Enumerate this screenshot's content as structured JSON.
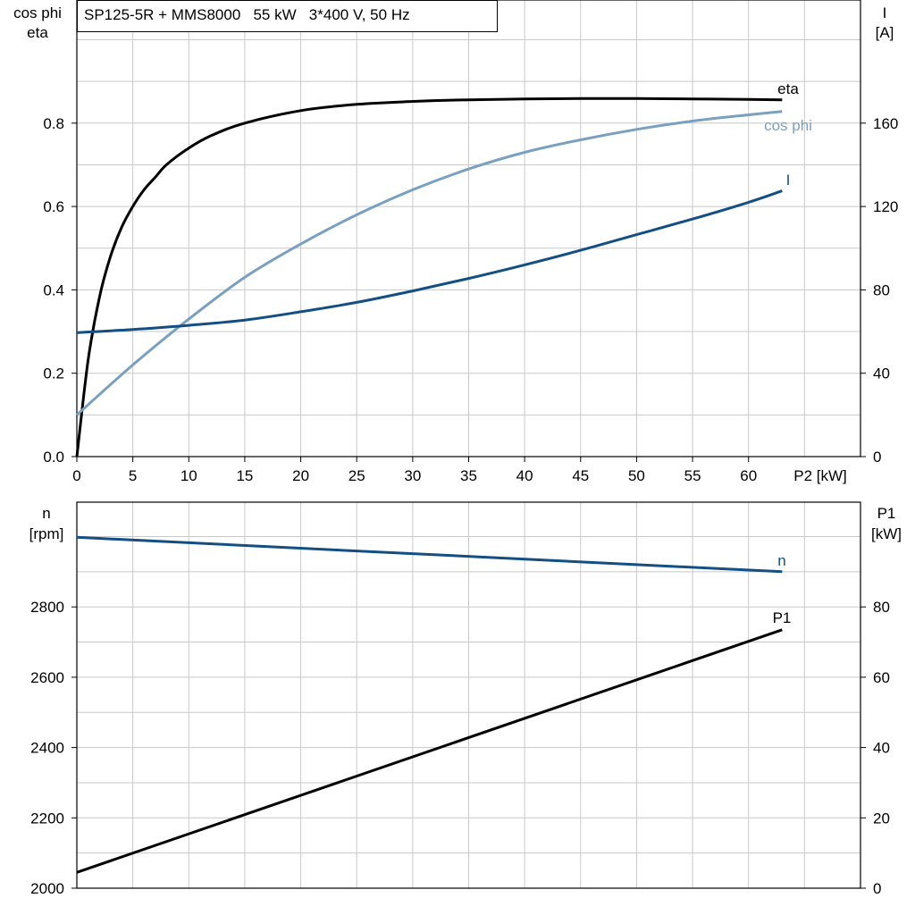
{
  "title": "SP125-5R + MMS8000   55 kW   3*400 V, 50 Hz",
  "colors": {
    "eta": "#000000",
    "cos_phi": "#7aa0c0",
    "current": "#134f82",
    "speed": "#134f82",
    "p1": "#000000",
    "grid": "#c8c8c8"
  },
  "chart_data": [
    {
      "type": "line",
      "xlabel": "P2 [kW]",
      "ylabel_left": [
        "cos phi",
        "eta"
      ],
      "ylabel_right": [
        "I",
        "[A]"
      ],
      "xlim": [
        0,
        70
      ],
      "ylim_left": [
        0,
        0.95
      ],
      "ylim_right": [
        0,
        190
      ],
      "x_ticks": [
        "0",
        "5",
        "10",
        "15",
        "20",
        "25",
        "30",
        "35",
        "40",
        "45",
        "50",
        "55",
        "60"
      ],
      "y_left_ticks": [
        "0.0",
        "0.2",
        "0.4",
        "0.6",
        "0.8"
      ],
      "y_right_ticks": [
        "0",
        "40",
        "80",
        "120",
        "160"
      ],
      "grid": true,
      "series": [
        {
          "name": "eta",
          "axis": "left",
          "x": [
            0,
            1,
            2,
            3,
            4,
            5,
            6,
            7,
            8,
            10,
            12,
            15,
            20,
            25,
            30,
            35,
            40,
            45,
            50,
            55,
            60,
            63
          ],
          "y": [
            0.0,
            0.23,
            0.38,
            0.48,
            0.55,
            0.6,
            0.64,
            0.67,
            0.7,
            0.74,
            0.77,
            0.8,
            0.83,
            0.845,
            0.852,
            0.856,
            0.858,
            0.859,
            0.859,
            0.858,
            0.857,
            0.856
          ]
        },
        {
          "name": "cos phi",
          "axis": "left",
          "x": [
            0,
            5,
            10,
            15,
            20,
            25,
            30,
            35,
            40,
            45,
            50,
            55,
            60,
            63
          ],
          "y": [
            0.1,
            0.22,
            0.33,
            0.43,
            0.51,
            0.58,
            0.64,
            0.69,
            0.73,
            0.76,
            0.785,
            0.805,
            0.82,
            0.828
          ]
        },
        {
          "name": "I",
          "axis": "right",
          "x": [
            0,
            5,
            10,
            15,
            20,
            25,
            30,
            35,
            40,
            45,
            50,
            55,
            60,
            63
          ],
          "y": [
            59.5,
            61,
            63,
            65.5,
            69.5,
            74,
            79.5,
            85.5,
            92,
            99,
            106.5,
            114,
            122,
            127.5
          ]
        }
      ]
    },
    {
      "type": "line",
      "xlabel": "",
      "ylabel_left": [
        "n",
        "[rpm]"
      ],
      "ylabel_right": [
        "P1",
        "[kW]"
      ],
      "xlim": [
        0,
        70
      ],
      "ylim_left": [
        2000,
        3100
      ],
      "ylim_right": [
        0,
        110
      ],
      "y_left_ticks": [
        "2000",
        "2200",
        "2400",
        "2600",
        "2800"
      ],
      "y_right_ticks": [
        "0",
        "20",
        "40",
        "60",
        "80"
      ],
      "grid": true,
      "series": [
        {
          "name": "n",
          "axis": "left",
          "x": [
            0,
            63
          ],
          "y": [
            2998,
            2900
          ]
        },
        {
          "name": "P1",
          "axis": "right",
          "x": [
            0,
            63
          ],
          "y": [
            4.5,
            73.5
          ]
        }
      ]
    }
  ]
}
